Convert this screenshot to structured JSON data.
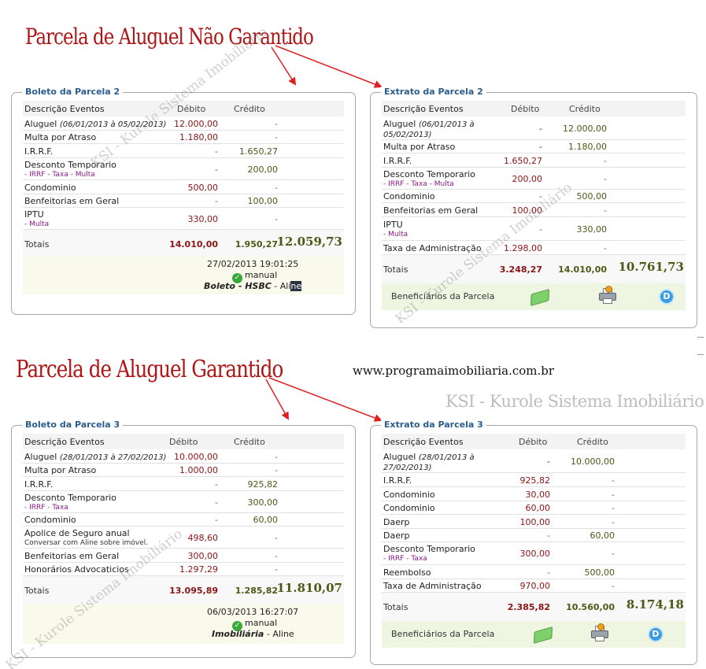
{
  "headings": {
    "nao_garantido": "Parcela de Aluguel Não Garantido",
    "garantido": "Parcela de Aluguel Garantido"
  },
  "site_url": "www.programaimobiliaria.com.br",
  "watermark": "KSI - Kurole Sistema Imobiliário",
  "columns": {
    "desc": "Descrição Eventos",
    "debit": "Débito",
    "credit": "Crédito"
  },
  "totals_label": "Totais",
  "benef_label": "Beneficiários da Parcela",
  "icons": {
    "money": "money-icon",
    "print": "printer-icon",
    "d": "d-circle-icon",
    "check": "check-icon"
  },
  "colors": {
    "heading": "#b01515",
    "debit": "#8b1414",
    "credit": "#4a5a16",
    "title": "#2a5d8c"
  },
  "boleto2": {
    "title": "Boleto da Parcela 2",
    "rows": [
      {
        "desc": "Aluguel",
        "period": "(06/01/2013 à 05/02/2013)",
        "sub": "",
        "debit": "12.000,00",
        "credit": "-"
      },
      {
        "desc": "Multa por Atraso",
        "period": "",
        "sub": "",
        "debit": "1.180,00",
        "credit": "-"
      },
      {
        "desc": "I.R.R.F.",
        "period": "",
        "sub": "",
        "debit": "-",
        "credit": "1.650,27"
      },
      {
        "desc": "Desconto Temporario",
        "period": "",
        "sub": "- IRRF - Taxa - Multa",
        "debit": "-",
        "credit": "200,00"
      },
      {
        "desc": "Condominio",
        "period": "",
        "sub": "",
        "debit": "500,00",
        "credit": "-"
      },
      {
        "desc": "Benfeitorias em Geral",
        "period": "",
        "sub": "",
        "debit": "-",
        "credit": "100,00"
      },
      {
        "desc": "IPTU",
        "period": "",
        "sub": "- Multa",
        "debit": "330,00",
        "credit": "-"
      }
    ],
    "totals": {
      "debit": "14.010,00",
      "credit": "1.950,27",
      "grand": "12.059,73"
    },
    "footer": {
      "timestamp": "27/02/2013 19:01:25",
      "status": "manual",
      "bank": "Boleto - HSBC",
      "sep": " - ",
      "user_a": "Ali",
      "user_b": "ne"
    }
  },
  "extrato2": {
    "title": "Extrato da Parcela 2",
    "rows": [
      {
        "desc": "Aluguel",
        "period": "(06/01/2013 à",
        "period2": "05/02/2013)",
        "sub": "",
        "debit": "-",
        "credit": "12.000,00"
      },
      {
        "desc": "Multa por Atraso",
        "period": "",
        "period2": "",
        "sub": "",
        "debit": "-",
        "credit": "1.180,00"
      },
      {
        "desc": "I.R.R.F.",
        "period": "",
        "period2": "",
        "sub": "",
        "debit": "1.650,27",
        "credit": "-"
      },
      {
        "desc": "Desconto Temporario",
        "period": "",
        "period2": "",
        "sub": "- IRRF - Taxa - Multa",
        "debit": "200,00",
        "credit": "-"
      },
      {
        "desc": "Condominio",
        "period": "",
        "period2": "",
        "sub": "",
        "debit": "-",
        "credit": "500,00"
      },
      {
        "desc": "Benfeitorias em Geral",
        "period": "",
        "period2": "",
        "sub": "",
        "debit": "100,00",
        "credit": "-"
      },
      {
        "desc": "IPTU",
        "period": "",
        "period2": "",
        "sub": "- Multa",
        "debit": "-",
        "credit": "330,00"
      },
      {
        "desc": "Taxa de Administração",
        "period": "",
        "period2": "",
        "sub": "",
        "debit": "1.298,00",
        "credit": "-"
      }
    ],
    "totals": {
      "debit": "3.248,27",
      "credit": "14.010,00",
      "grand": "10.761,73"
    }
  },
  "boleto3": {
    "title": "Boleto da Parcela 3",
    "rows": [
      {
        "desc": "Aluguel",
        "period": "(28/01/2013 à 27/02/2013)",
        "sub": "",
        "subgray": false,
        "debit": "10.000,00",
        "credit": "-"
      },
      {
        "desc": "Multa por Atraso",
        "period": "",
        "sub": "",
        "subgray": false,
        "debit": "1.000,00",
        "credit": "-"
      },
      {
        "desc": "I.R.R.F.",
        "period": "",
        "sub": "",
        "subgray": false,
        "debit": "-",
        "credit": "925,82"
      },
      {
        "desc": "Desconto Temporario",
        "period": "",
        "sub": "- IRRF - Taxa",
        "subgray": false,
        "debit": "-",
        "credit": "300,00"
      },
      {
        "desc": "Condominio",
        "period": "",
        "sub": "",
        "subgray": false,
        "debit": "-",
        "credit": "60,00"
      },
      {
        "desc": "Apolice de Seguro anual",
        "period": "",
        "sub": "Conversar com Aline sobre imóvel.",
        "subgray": true,
        "debit": "498,60",
        "credit": "-"
      },
      {
        "desc": "Benfeitorias em Geral",
        "period": "",
        "sub": "",
        "subgray": false,
        "debit": "300,00",
        "credit": "-"
      },
      {
        "desc": "Honorários Advocaticios",
        "period": "",
        "sub": "",
        "subgray": false,
        "debit": "1.297,29",
        "credit": "-"
      }
    ],
    "totals": {
      "debit": "13.095,89",
      "credit": "1.285,82",
      "grand": "11.810,07"
    },
    "footer": {
      "timestamp": "06/03/2013 16:27:07",
      "status": "manual",
      "bank": "Imobiliária",
      "sep": " - ",
      "user": "Aline"
    }
  },
  "extrato3": {
    "title": "Extrato da Parcela 3",
    "rows": [
      {
        "desc": "Aluguel",
        "period": "(28/01/2013 à",
        "period2": "27/02/2013)",
        "sub": "",
        "debit": "-",
        "credit": "10.000,00"
      },
      {
        "desc": "I.R.R.F.",
        "period": "",
        "period2": "",
        "sub": "",
        "debit": "925,82",
        "credit": "-"
      },
      {
        "desc": "Condominio",
        "period": "",
        "period2": "",
        "sub": "",
        "debit": "30,00",
        "credit": "-"
      },
      {
        "desc": "Condominio",
        "period": "",
        "period2": "",
        "sub": "",
        "debit": "60,00",
        "credit": "-"
      },
      {
        "desc": "Daerp",
        "period": "",
        "period2": "",
        "sub": "",
        "debit": "100,00",
        "credit": "-"
      },
      {
        "desc": "Daerp",
        "period": "",
        "period2": "",
        "sub": "",
        "debit": "-",
        "credit": "60,00"
      },
      {
        "desc": "Desconto Temporario",
        "period": "",
        "period2": "",
        "sub": "- IRRF - Taxa",
        "debit": "300,00",
        "credit": "-"
      },
      {
        "desc": "Reembolso",
        "period": "",
        "period2": "",
        "sub": "",
        "debit": "-",
        "credit": "500,00"
      },
      {
        "desc": "Taxa de Administração",
        "period": "",
        "period2": "",
        "sub": "",
        "debit": "970,00",
        "credit": "-"
      }
    ],
    "totals": {
      "debit": "2.385,82",
      "credit": "10.560,00",
      "grand": "8.174,18"
    }
  }
}
